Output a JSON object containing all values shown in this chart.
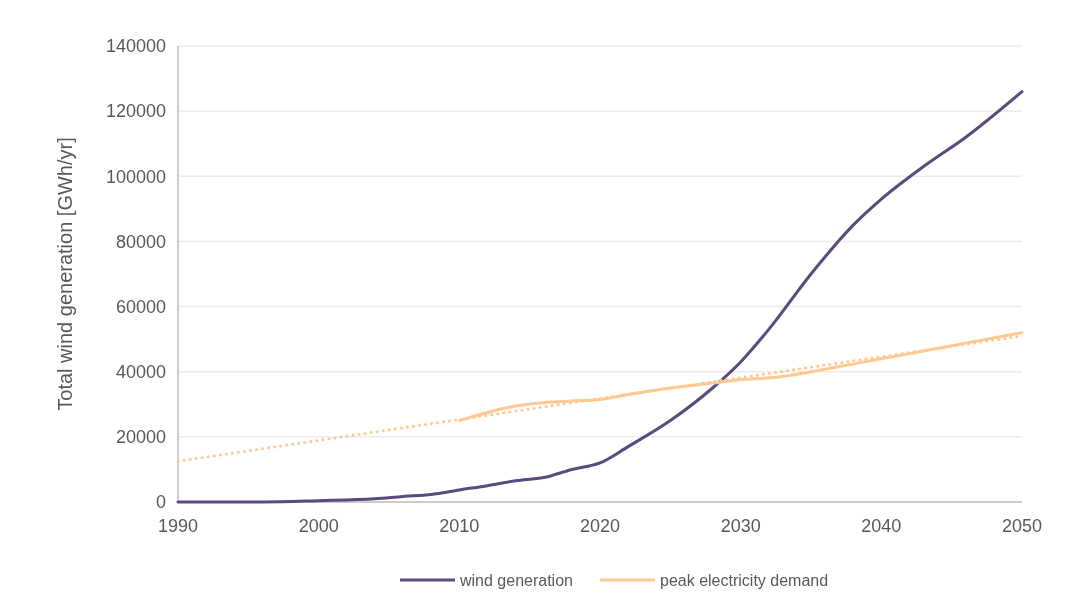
{
  "chart_data": {
    "type": "line",
    "ylabel": "Total wind generation [GWh/yr]",
    "xlim": [
      1990,
      2050
    ],
    "xticks": [
      1990,
      2000,
      2010,
      2020,
      2030,
      2040,
      2050
    ],
    "ylim": [
      0,
      140000
    ],
    "yticks": [
      0,
      20000,
      40000,
      60000,
      80000,
      100000,
      120000,
      140000
    ],
    "grid": "y",
    "legend": "bottom",
    "line_style": "solid",
    "marker": "none",
    "series": [
      {
        "name": "wind generation",
        "color": "#5b4a7e",
        "x": [
          1990,
          1996,
          2000,
          2004,
          2006,
          2008,
          2010,
          2012,
          2014,
          2016,
          2018,
          2020,
          2022,
          2025,
          2028,
          2030,
          2032,
          2035,
          2038,
          2040,
          2043,
          2046,
          2050
        ],
        "values": [
          0,
          0,
          400,
          1000,
          1700,
          2300,
          3700,
          5000,
          6500,
          7500,
          10000,
          12000,
          17000,
          25000,
          35000,
          43000,
          53000,
          70000,
          85000,
          93000,
          103000,
          112000,
          126000
        ]
      },
      {
        "name": "peak electricity demand",
        "color": "#ffc993",
        "x": [
          2010,
          2012,
          2014,
          2016,
          2018,
          2020,
          2022,
          2025,
          2028,
          2030,
          2033,
          2035,
          2040,
          2045,
          2050
        ],
        "values": [
          25000,
          27500,
          29500,
          30500,
          31000,
          31500,
          33000,
          35000,
          36500,
          37500,
          38500,
          40000,
          44000,
          48000,
          52000
        ]
      },
      {
        "color": "#ffc993",
        "line_style": "dotted",
        "x": [
          1990,
          2050
        ],
        "values": [
          12500,
          51000
        ]
      }
    ]
  }
}
